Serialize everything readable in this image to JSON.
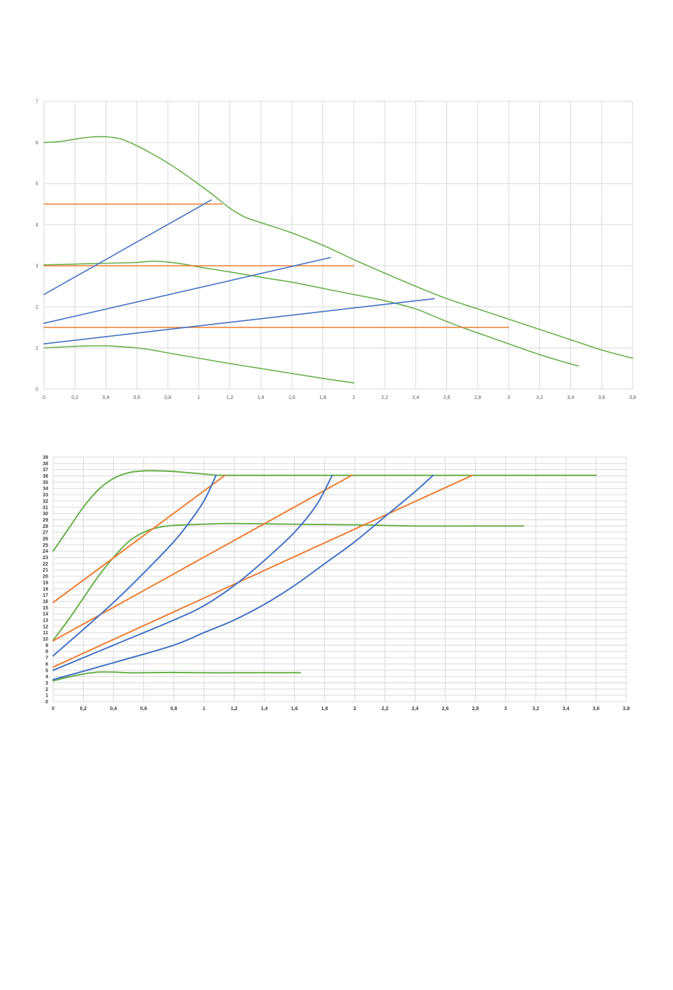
{
  "colors": {
    "green": "#6ab04c",
    "orange": "#ed7d31",
    "blue": "#4472c4",
    "grid": "#d9d9d9",
    "label": "#595959"
  },
  "chart_data": [
    {
      "type": "line",
      "xlim": [
        0,
        3.8
      ],
      "ylim": [
        0,
        7
      ],
      "grid": true,
      "x_ticks": [
        "0",
        "0,2",
        "0,4",
        "0,6",
        "0,8",
        "1",
        "1,2",
        "1,4",
        "1,6",
        "1,8",
        "2",
        "2,2",
        "2,4",
        "2,6",
        "2,8",
        "3",
        "3,2",
        "3,4",
        "3,6",
        "3,8"
      ],
      "y_ticks": [
        "0",
        "1",
        "2",
        "3",
        "4",
        "5",
        "6",
        "7"
      ],
      "series": [
        {
          "color": "green",
          "points": [
            [
              0,
              6.0
            ],
            [
              0.1,
              6.02
            ],
            [
              0.2,
              6.08
            ],
            [
              0.3,
              6.13
            ],
            [
              0.4,
              6.14
            ],
            [
              0.5,
              6.08
            ],
            [
              0.6,
              5.92
            ],
            [
              0.7,
              5.72
            ],
            [
              0.8,
              5.5
            ],
            [
              0.9,
              5.25
            ],
            [
              1.0,
              4.98
            ],
            [
              1.1,
              4.7
            ],
            [
              1.2,
              4.4
            ],
            [
              1.3,
              4.18
            ],
            [
              1.4,
              4.05
            ],
            [
              1.6,
              3.8
            ],
            [
              1.8,
              3.5
            ],
            [
              2.0,
              3.15
            ],
            [
              2.2,
              2.82
            ],
            [
              2.4,
              2.5
            ],
            [
              2.6,
              2.2
            ],
            [
              2.8,
              1.95
            ],
            [
              3.0,
              1.7
            ],
            [
              3.2,
              1.45
            ],
            [
              3.4,
              1.2
            ],
            [
              3.6,
              0.95
            ],
            [
              3.8,
              0.75
            ]
          ]
        },
        {
          "color": "green",
          "points": [
            [
              0,
              3.02
            ],
            [
              0.2,
              3.04
            ],
            [
              0.4,
              3.06
            ],
            [
              0.6,
              3.08
            ],
            [
              0.7,
              3.11
            ],
            [
              0.8,
              3.09
            ],
            [
              0.9,
              3.04
            ],
            [
              1.0,
              2.97
            ],
            [
              1.2,
              2.85
            ],
            [
              1.4,
              2.72
            ],
            [
              1.6,
              2.6
            ],
            [
              1.8,
              2.45
            ],
            [
              2.0,
              2.3
            ],
            [
              2.2,
              2.15
            ],
            [
              2.4,
              1.95
            ],
            [
              2.55,
              1.72
            ],
            [
              2.7,
              1.5
            ],
            [
              2.85,
              1.3
            ],
            [
              3.0,
              1.1
            ],
            [
              3.15,
              0.9
            ],
            [
              3.3,
              0.72
            ],
            [
              3.45,
              0.56
            ]
          ]
        },
        {
          "color": "green",
          "points": [
            [
              0,
              1.0
            ],
            [
              0.1,
              1.02
            ],
            [
              0.2,
              1.04
            ],
            [
              0.3,
              1.05
            ],
            [
              0.4,
              1.05
            ],
            [
              0.5,
              1.03
            ],
            [
              0.6,
              1.0
            ],
            [
              0.7,
              0.95
            ],
            [
              0.8,
              0.88
            ],
            [
              1.0,
              0.75
            ],
            [
              1.2,
              0.62
            ],
            [
              1.4,
              0.5
            ],
            [
              1.6,
              0.38
            ],
            [
              1.8,
              0.26
            ],
            [
              2.0,
              0.15
            ]
          ]
        },
        {
          "color": "orange",
          "points": [
            [
              0,
              4.5
            ],
            [
              1.15,
              4.5
            ]
          ]
        },
        {
          "color": "orange",
          "points": [
            [
              0,
              3.0
            ],
            [
              2.0,
              3.0
            ]
          ]
        },
        {
          "color": "orange",
          "points": [
            [
              0,
              1.5
            ],
            [
              3.0,
              1.5
            ]
          ]
        },
        {
          "color": "blue",
          "points": [
            [
              0,
              2.3
            ],
            [
              1.08,
              4.6
            ]
          ]
        },
        {
          "color": "blue",
          "points": [
            [
              0,
              1.6
            ],
            [
              1.85,
              3.2
            ]
          ]
        },
        {
          "color": "blue",
          "points": [
            [
              0,
              1.1
            ],
            [
              2.52,
              2.2
            ]
          ]
        }
      ]
    },
    {
      "type": "line",
      "xlim": [
        0,
        3.8
      ],
      "ylim": [
        0,
        39
      ],
      "grid": true,
      "x_ticks": [
        "0",
        "0,2",
        "0,4",
        "0,6",
        "0,8",
        "1",
        "1,2",
        "1,4",
        "1,6",
        "1,8",
        "2",
        "2,2",
        "2,4",
        "2,6",
        "2,8",
        "3",
        "3,2",
        "3,4",
        "3,6",
        "3,8"
      ],
      "y_ticks": [
        "0",
        "1",
        "2",
        "3",
        "4",
        "5",
        "6",
        "7",
        "8",
        "9",
        "10",
        "11",
        "12",
        "13",
        "14",
        "15",
        "16",
        "17",
        "18",
        "19",
        "20",
        "21",
        "22",
        "23",
        "24",
        "25",
        "26",
        "27",
        "28",
        "29",
        "30",
        "31",
        "32",
        "33",
        "34",
        "35",
        "36",
        "37",
        "38",
        "39"
      ],
      "series": [
        {
          "color": "green",
          "points": [
            [
              0,
              24.0
            ],
            [
              0.1,
              27.5
            ],
            [
              0.2,
              31.0
            ],
            [
              0.3,
              33.8
            ],
            [
              0.4,
              35.6
            ],
            [
              0.5,
              36.5
            ],
            [
              0.6,
              36.8
            ],
            [
              0.7,
              36.8
            ],
            [
              0.8,
              36.7
            ],
            [
              0.9,
              36.5
            ],
            [
              1.0,
              36.3
            ],
            [
              1.1,
              36.1
            ],
            [
              1.2,
              36.1
            ],
            [
              1.6,
              36.1
            ],
            [
              2.0,
              36.1
            ],
            [
              2.5,
              36.1
            ],
            [
              3.0,
              36.1
            ],
            [
              3.6,
              36.1
            ]
          ]
        },
        {
          "color": "green",
          "points": [
            [
              0,
              9.8
            ],
            [
              0.1,
              13.0
            ],
            [
              0.2,
              16.5
            ],
            [
              0.3,
              20.0
            ],
            [
              0.4,
              23.0
            ],
            [
              0.5,
              25.5
            ],
            [
              0.6,
              27.0
            ],
            [
              0.7,
              27.8
            ],
            [
              0.8,
              28.1
            ],
            [
              1.0,
              28.3
            ],
            [
              1.2,
              28.4
            ],
            [
              1.6,
              28.3
            ],
            [
              2.0,
              28.2
            ],
            [
              2.4,
              28.0
            ],
            [
              2.8,
              28.0
            ],
            [
              3.12,
              28.0
            ]
          ]
        },
        {
          "color": "green",
          "points": [
            [
              0,
              3.3
            ],
            [
              0.1,
              3.9
            ],
            [
              0.2,
              4.4
            ],
            [
              0.3,
              4.7
            ],
            [
              0.4,
              4.7
            ],
            [
              0.5,
              4.6
            ],
            [
              0.6,
              4.6
            ],
            [
              0.8,
              4.65
            ],
            [
              1.0,
              4.6
            ],
            [
              1.2,
              4.6
            ],
            [
              1.4,
              4.6
            ],
            [
              1.64,
              4.6
            ]
          ]
        },
        {
          "color": "orange",
          "points": [
            [
              0,
              15.8
            ],
            [
              1.14,
              36.1
            ]
          ]
        },
        {
          "color": "orange",
          "points": [
            [
              0,
              9.7
            ],
            [
              1.98,
              36.1
            ]
          ]
        },
        {
          "color": "orange",
          "points": [
            [
              0,
              5.5
            ],
            [
              2.78,
              36.1
            ]
          ]
        },
        {
          "color": "blue",
          "points": [
            [
              0,
              7.3
            ],
            [
              0.2,
              11.5
            ],
            [
              0.4,
              15.8
            ],
            [
              0.6,
              20.5
            ],
            [
              0.8,
              25.5
            ],
            [
              0.9,
              28.5
            ],
            [
              1.0,
              32.0
            ],
            [
              1.08,
              36.1
            ]
          ]
        },
        {
          "color": "blue",
          "points": [
            [
              0,
              5.0
            ],
            [
              0.4,
              9.0
            ],
            [
              0.8,
              13.0
            ],
            [
              1.0,
              15.3
            ],
            [
              1.2,
              18.5
            ],
            [
              1.4,
              22.5
            ],
            [
              1.6,
              27.0
            ],
            [
              1.75,
              31.5
            ],
            [
              1.85,
              36.1
            ]
          ]
        },
        {
          "color": "blue",
          "points": [
            [
              0,
              3.5
            ],
            [
              0.4,
              6.2
            ],
            [
              0.8,
              9.0
            ],
            [
              1.0,
              11.0
            ],
            [
              1.2,
              13.0
            ],
            [
              1.4,
              15.5
            ],
            [
              1.6,
              18.5
            ],
            [
              1.8,
              22.0
            ],
            [
              2.0,
              25.5
            ],
            [
              2.2,
              29.5
            ],
            [
              2.4,
              33.5
            ],
            [
              2.52,
              36.1
            ]
          ]
        }
      ]
    }
  ]
}
